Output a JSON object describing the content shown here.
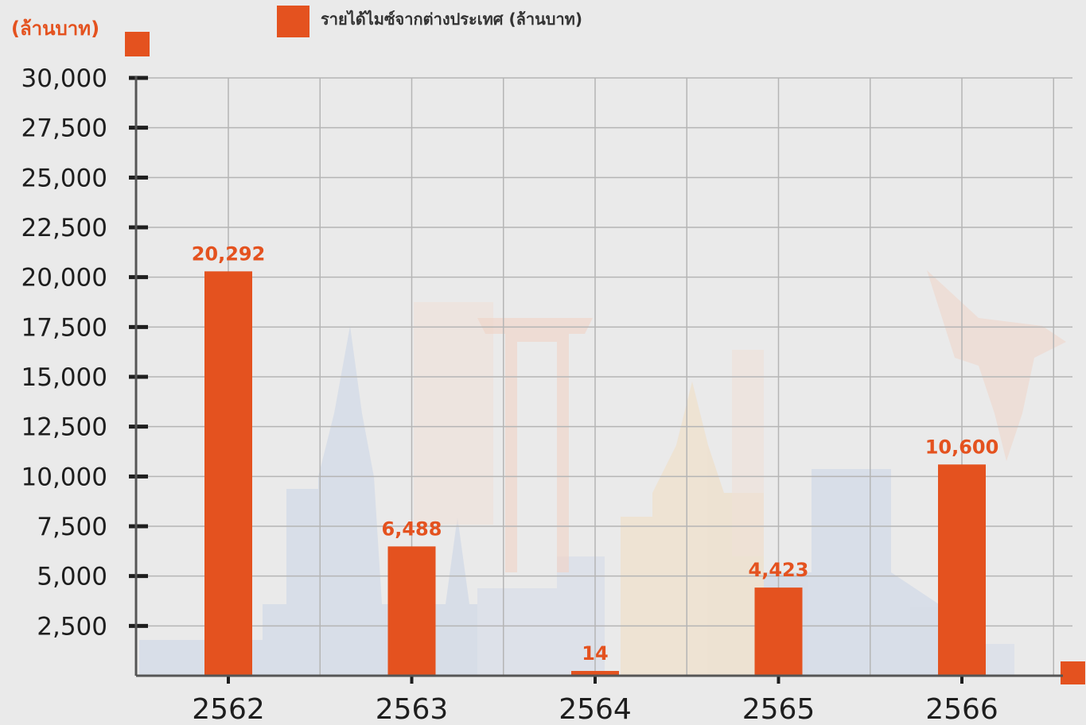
{
  "colors": {
    "bar": "#e4521f",
    "grid": "#b5b5b5",
    "axis": "#555555",
    "tick": "#1e1e1e",
    "background": "#eaeaea"
  },
  "chart_data": {
    "type": "bar",
    "title": "",
    "ylabel": "(ล้านบาท)",
    "xlabel": "",
    "categories": [
      "2562",
      "2563",
      "2564",
      "2565",
      "2566"
    ],
    "series": [
      {
        "name": "รายได้ไมซ์จากต่างประเทศ (ล้านบาท)",
        "values": [
          20292,
          6488,
          14,
          4423,
          10600
        ]
      }
    ],
    "data_labels": [
      "20,292",
      "6,488",
      "14",
      "4,423",
      "10,600"
    ],
    "ylim": [
      0,
      30000
    ],
    "y_ticks": [
      2500,
      5000,
      7500,
      10000,
      12500,
      15000,
      17500,
      20000,
      22500,
      25000,
      27500,
      30000
    ],
    "y_tick_labels": [
      "2,500",
      "5,000",
      "7,500",
      "10,000",
      "12,500",
      "15,000",
      "17,500",
      "20,000",
      "22,500",
      "25,000",
      "27,500",
      "30,000"
    ],
    "grid": true,
    "legend": "top-center"
  }
}
